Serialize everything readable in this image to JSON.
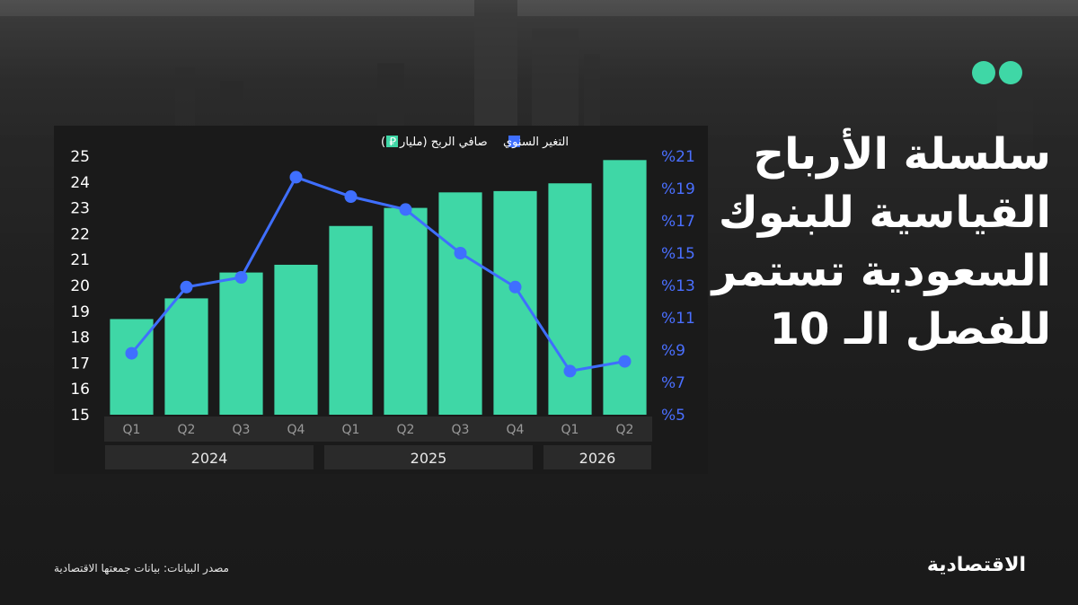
{
  "headline": "سلسلة الأرباح القياسية للبنوك السعودية تستمر للفصل الـ 10",
  "source": "مصدر البيانات: بيانات جمعتها الاقتصادية",
  "logo": "الاقتصادية",
  "colors": {
    "bar": "#3fd7a6",
    "line": "#3f6fff",
    "right_axis": "#4a6fff",
    "accent": "#3fd7a6"
  },
  "chart_data": {
    "type": "bar",
    "title": "",
    "legend": [
      {
        "label": "صافي الربح (مليار ⃁ )",
        "color": "#3fd7a6"
      },
      {
        "label": "التغير السنوي",
        "color": "#3f6fff"
      }
    ],
    "categories": [
      "Q1",
      "Q2",
      "Q3",
      "Q4",
      "Q1",
      "Q2",
      "Q3",
      "Q4",
      "Q1",
      "Q2"
    ],
    "years": [
      {
        "label": "2024",
        "span": 4
      },
      {
        "label": "2025",
        "span": 4
      },
      {
        "label": "2026",
        "span": 2
      }
    ],
    "series": [
      {
        "name": "صافي الربح (مليار ⃁ )",
        "type": "bar",
        "axis": "left",
        "values": [
          18.7,
          19.5,
          20.5,
          20.8,
          22.3,
          23.0,
          23.6,
          23.65,
          23.95,
          24.85
        ]
      },
      {
        "name": "التغير السنوي",
        "type": "line",
        "axis": "right",
        "values": [
          8.8,
          12.9,
          13.5,
          19.7,
          18.5,
          17.7,
          15.0,
          12.9,
          7.7,
          8.3
        ]
      }
    ],
    "ylim_left": [
      15,
      25
    ],
    "yticks_left": [
      "15",
      "16",
      "17",
      "18",
      "19",
      "20",
      "21",
      "22",
      "23",
      "24",
      "25"
    ],
    "ylim_right": [
      5,
      21
    ],
    "yticks_right": [
      "%5",
      "%7",
      "%9",
      "%11",
      "%13",
      "%15",
      "%17",
      "%19",
      "%21"
    ],
    "grid": false
  }
}
